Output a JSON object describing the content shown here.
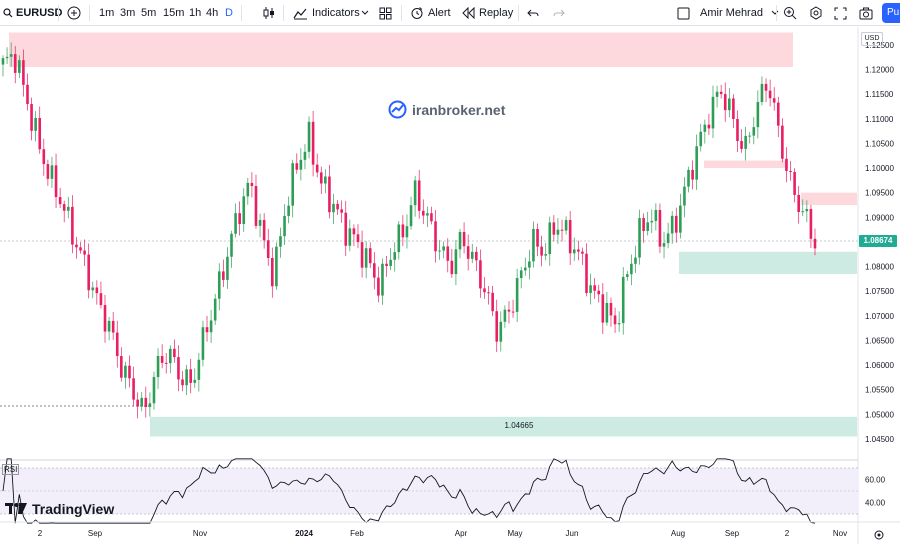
{
  "toolbar": {
    "symbol": "EURUSD",
    "timeframes": [
      "1m",
      "3m",
      "5m",
      "15m",
      "1h",
      "4h",
      "D"
    ],
    "active_timeframe": "D",
    "indicators_label": "Indicators",
    "alert_label": "Alert",
    "replay_label": "Replay",
    "user_name": "Amir Mehrad",
    "publish_label": "Pu"
  },
  "chart": {
    "watermark": "iranbroker.net",
    "currency": "USD",
    "current_price": "1.08674",
    "zone_price_label": "1.04665",
    "price_levels": [
      "1.12500",
      "1.12000",
      "1.11500",
      "1.11000",
      "1.10500",
      "1.10000",
      "1.09500",
      "1.09000",
      "1.08500",
      "1.08000",
      "1.07500",
      "1.07000",
      "1.06500",
      "1.06000",
      "1.05500",
      "1.05000",
      "1.04500"
    ],
    "time_labels": [
      "2",
      "Sep",
      "Nov",
      "2024",
      "Feb",
      "Apr",
      "May",
      "Jun",
      "Aug",
      "Sep",
      "2",
      "Nov"
    ],
    "rsi_label": "RSI",
    "rsi_levels": [
      "60.00",
      "40.00"
    ],
    "brand": "TradingView",
    "colors": {
      "up": "#089981",
      "down": "#f23645",
      "candle_up": "#2e9e57",
      "candle_down": "#e91e63",
      "supply_zone": "#fdd8dd",
      "demand_zone": "#cdebe3",
      "accent": "#2962ff",
      "rsi_band": "#ede7f6"
    }
  },
  "chart_data": {
    "type": "candlestick",
    "symbol": "EURUSD",
    "timeframe": "D",
    "ylim": [
      1.045,
      1.127
    ],
    "x_ticks": [
      "2",
      "Sep",
      "Nov",
      "2024",
      "Feb",
      "Apr",
      "May",
      "Jun",
      "Aug",
      "Sep",
      "2",
      "Nov"
    ],
    "close_path": [
      1.121,
      1.123,
      1.114,
      1.105,
      1.098,
      1.093,
      1.086,
      1.08,
      1.073,
      1.068,
      1.06,
      1.055,
      1.05,
      1.059,
      1.063,
      1.058,
      1.056,
      1.065,
      1.073,
      1.082,
      1.091,
      1.097,
      1.086,
      1.078,
      1.092,
      1.101,
      1.106,
      1.097,
      1.093,
      1.088,
      1.085,
      1.081,
      1.076,
      1.083,
      1.087,
      1.095,
      1.09,
      1.084,
      1.08,
      1.086,
      1.081,
      1.075,
      1.067,
      1.071,
      1.078,
      1.085,
      1.083,
      1.089,
      1.086,
      1.082,
      1.075,
      1.072,
      1.068,
      1.078,
      1.086,
      1.091,
      1.085,
      1.088,
      1.096,
      1.104,
      1.111,
      1.116,
      1.11,
      1.103,
      1.112,
      1.118,
      1.106,
      1.096,
      1.091,
      1.085
    ],
    "zones": [
      {
        "kind": "supply",
        "low": 1.1205,
        "high": 1.1275
      },
      {
        "kind": "supply",
        "low": 1.1,
        "high": 1.1015
      },
      {
        "kind": "supply",
        "low": 1.0925,
        "high": 1.095
      },
      {
        "kind": "demand",
        "low": 1.0785,
        "high": 1.083
      },
      {
        "kind": "demand",
        "low": 1.0455,
        "high": 1.0495
      }
    ],
    "last_price": 1.08674
  }
}
